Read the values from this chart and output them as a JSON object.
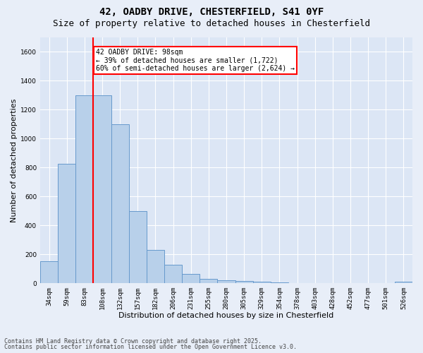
{
  "title_line1": "42, OADBY DRIVE, CHESTERFIELD, S41 0YF",
  "title_line2": "Size of property relative to detached houses in Chesterfield",
  "xlabel": "Distribution of detached houses by size in Chesterfield",
  "ylabel": "Number of detached properties",
  "bar_color": "#b8d0ea",
  "bar_edge_color": "#6699cc",
  "background_color": "#dce6f5",
  "fig_background_color": "#e8eef8",
  "annotation_text": "42 OADBY DRIVE: 98sqm\n← 39% of detached houses are smaller (1,722)\n60% of semi-detached houses are larger (2,624) →",
  "vline_color": "red",
  "annotation_box_edgecolor": "red",
  "categories": [
    "34sqm",
    "59sqm",
    "83sqm",
    "108sqm",
    "132sqm",
    "157sqm",
    "182sqm",
    "206sqm",
    "231sqm",
    "255sqm",
    "280sqm",
    "305sqm",
    "329sqm",
    "354sqm",
    "378sqm",
    "403sqm",
    "428sqm",
    "452sqm",
    "477sqm",
    "501sqm",
    "526sqm"
  ],
  "values": [
    150,
    825,
    1300,
    1300,
    1100,
    500,
    230,
    130,
    65,
    30,
    20,
    15,
    10,
    5,
    0,
    0,
    0,
    0,
    0,
    0,
    10
  ],
  "ylim": [
    0,
    1700
  ],
  "yticks": [
    0,
    200,
    400,
    600,
    800,
    1000,
    1200,
    1400,
    1600
  ],
  "footnote_line1": "Contains HM Land Registry data © Crown copyright and database right 2025.",
  "footnote_line2": "Contains public sector information licensed under the Open Government Licence v3.0.",
  "title_fontsize": 10,
  "subtitle_fontsize": 9,
  "tick_fontsize": 6.5,
  "xlabel_fontsize": 8,
  "ylabel_fontsize": 8,
  "footnote_fontsize": 6
}
